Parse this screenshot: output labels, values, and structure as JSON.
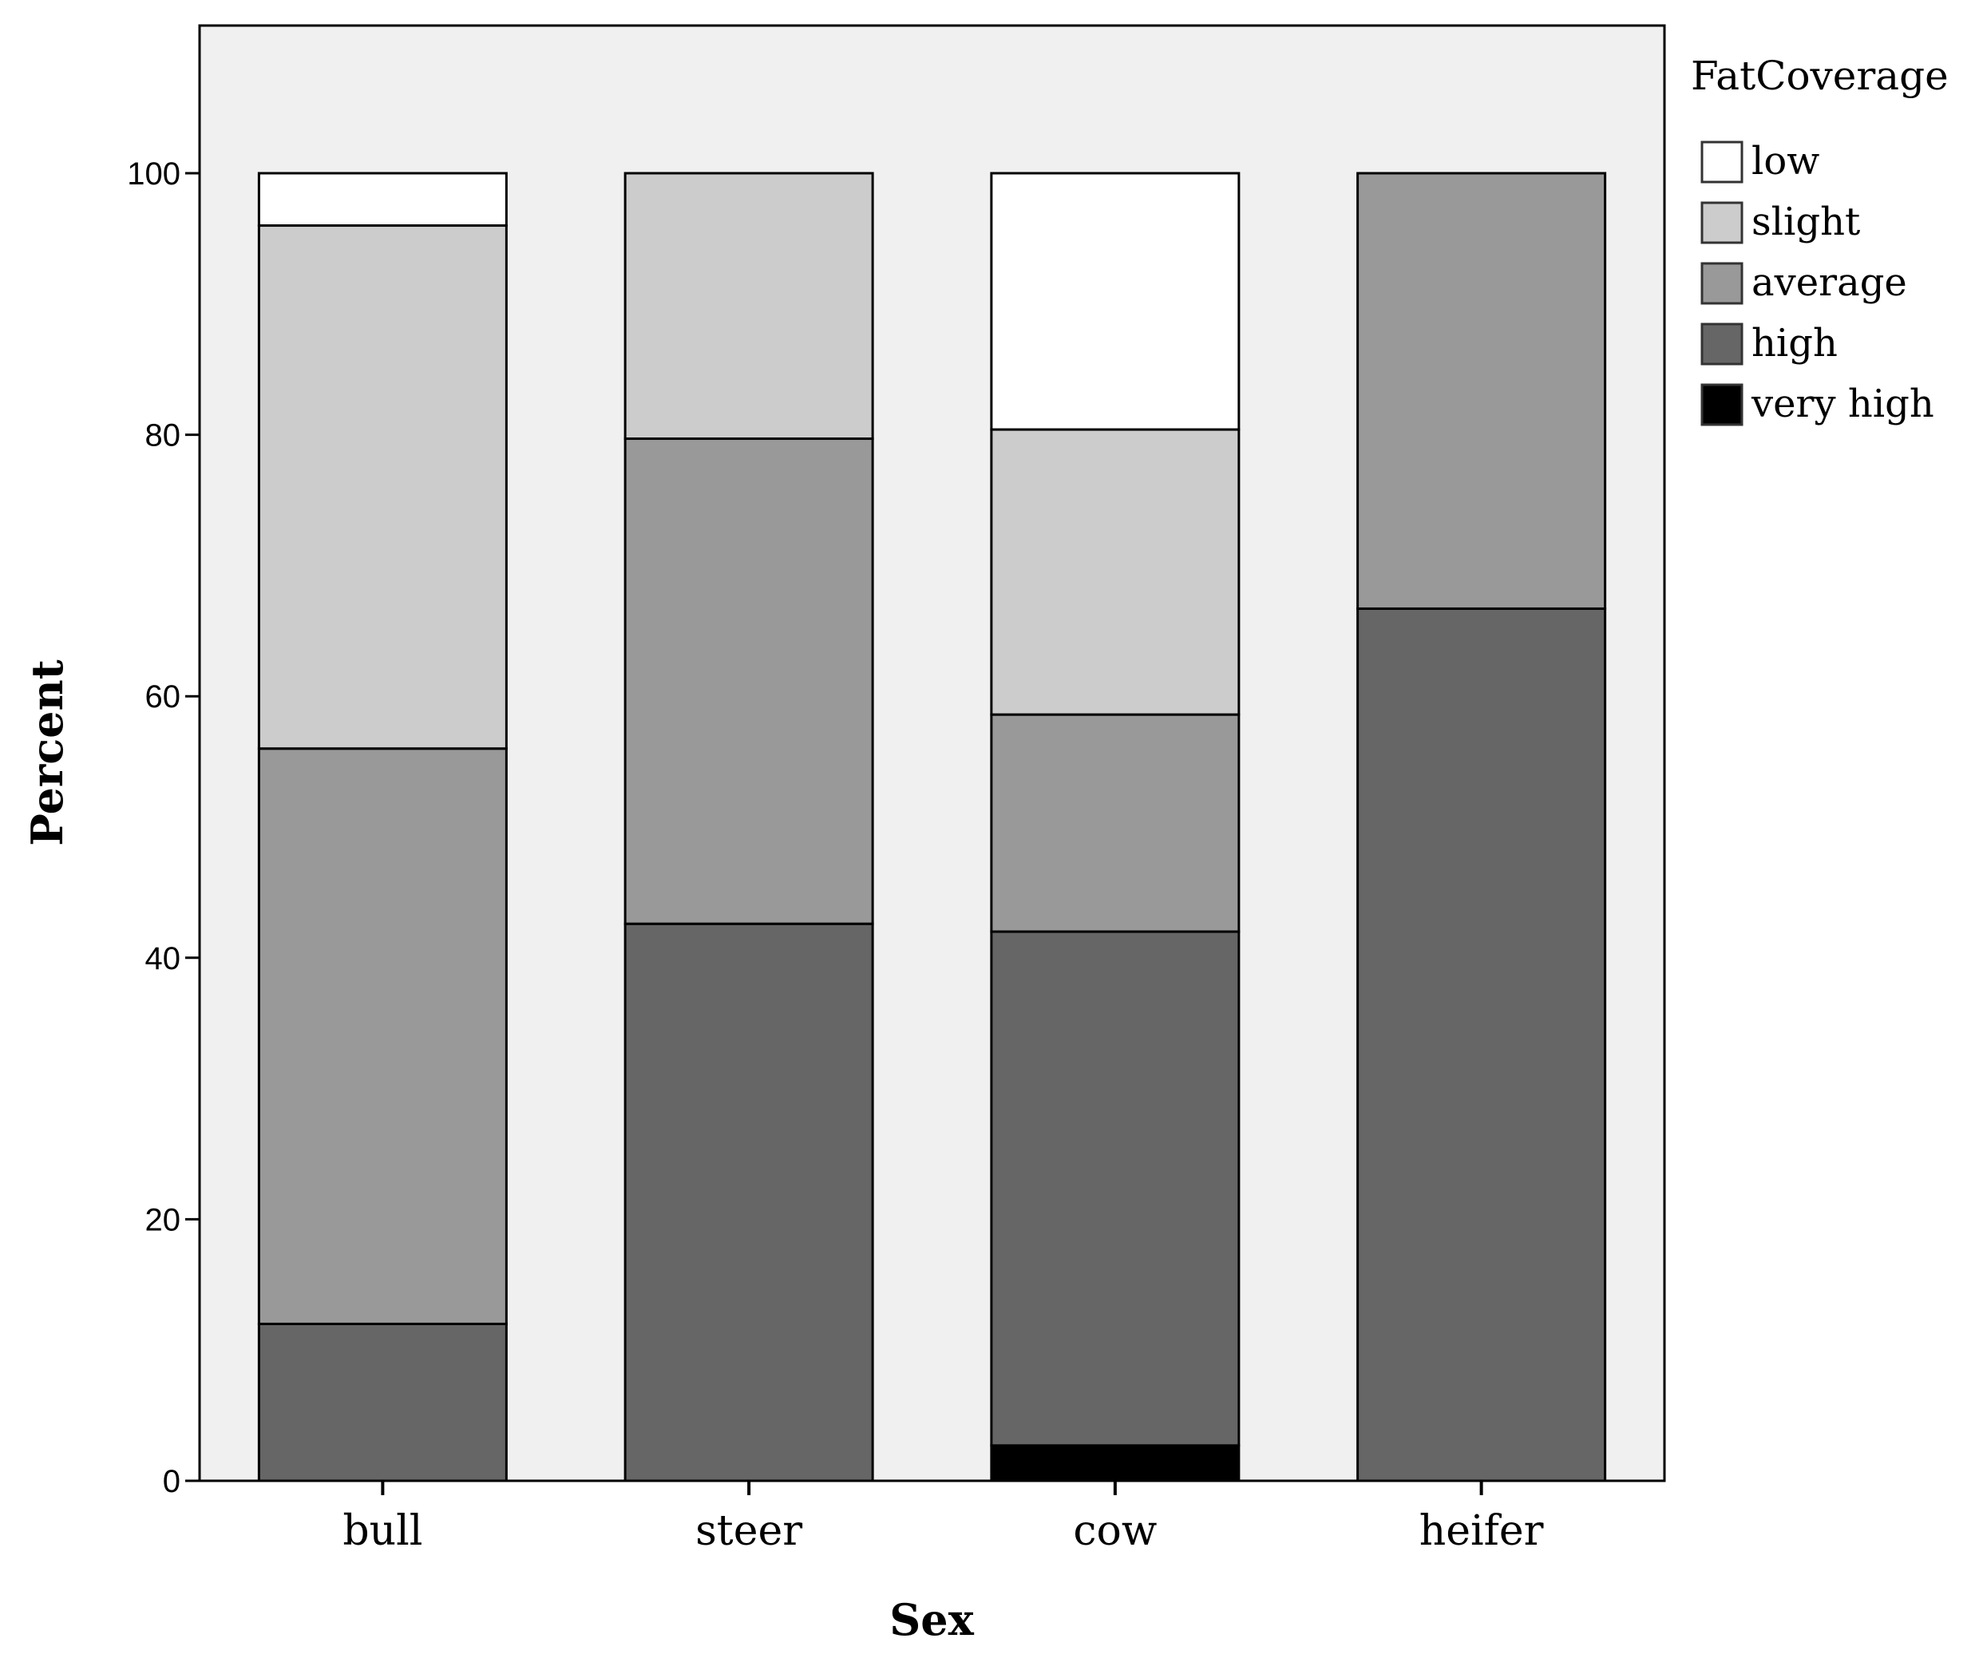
{
  "chart_data": {
    "type": "bar",
    "stacked": true,
    "categories": [
      "bull",
      "steer",
      "cow",
      "heifer"
    ],
    "series": [
      {
        "name": "very high",
        "color": "#000000",
        "values": [
          0,
          0,
          2.7,
          0
        ]
      },
      {
        "name": "high",
        "color": "#666666",
        "values": [
          12.0,
          42.6,
          39.3,
          66.7
        ]
      },
      {
        "name": "average",
        "color": "#999999",
        "values": [
          44.0,
          37.1,
          16.6,
          33.3
        ]
      },
      {
        "name": "slight",
        "color": "#cccccc",
        "values": [
          40.0,
          20.3,
          21.8,
          0
        ]
      },
      {
        "name": "low",
        "color": "#ffffff",
        "values": [
          4.0,
          0,
          19.6,
          0
        ]
      }
    ],
    "legend_order": [
      "low",
      "slight",
      "average",
      "high",
      "very high"
    ],
    "legend_title": "FatCoverage",
    "legend_position": "top-right, outside plot",
    "xlabel": "Sex",
    "ylabel": "Percent",
    "ylim": [
      0,
      100
    ],
    "yticks": [
      0,
      20,
      40,
      60,
      80,
      100
    ],
    "grid": false,
    "plot_background": "#f0f0f0"
  }
}
